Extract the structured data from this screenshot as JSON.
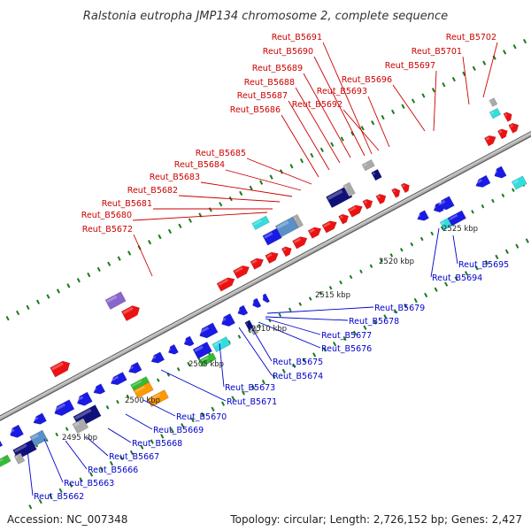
{
  "title": "Ralstonia eutropha JMP134 chromosome 2, complete sequence",
  "accession_label": "Accession: NC_007348",
  "topology_label": "Topology: circular; Length: 2,726,152 bp; Genes: 2,427",
  "colors": {
    "forward_label": "#cc0000",
    "reverse_label": "#0000cc",
    "backbone": "#8c8c8c",
    "tick": "#1a7a1a",
    "gene_red": "#ee1111",
    "gene_blue": "#1a1ae6",
    "gene_navy": "#10107a",
    "gene_steel": "#5b8fc7",
    "gene_cyan": "#33dddd",
    "gene_green": "#33bb33",
    "gene_orange": "#ff9900",
    "gene_purple": "#8866cc",
    "gene_gray": "#aaaaaa"
  },
  "kbp_labels": [
    "2495 kbp",
    "2500 kbp",
    "2505 kbp",
    "2510 kbp",
    "2515 kbp",
    "2520 kbp",
    "2525 kbp"
  ],
  "forward_genes": [
    "Reut_B5672",
    "Reut_B5680",
    "Reut_B5681",
    "Reut_B5682",
    "Reut_B5683",
    "Reut_B5684",
    "Reut_B5685",
    "Reut_B5686",
    "Reut_B5687",
    "Reut_B5688",
    "Reut_B5689",
    "Reut_B5690",
    "Reut_B5691",
    "Reut_B5692",
    "Reut_B5693",
    "Reut_B5696",
    "Reut_B5697",
    "Reut_B5701",
    "Reut_B5702"
  ],
  "reverse_genes": [
    "Reut_B5662",
    "Reut_B5663",
    "Reut_B5666",
    "Reut_B5667",
    "Reut_B5668",
    "Reut_B5669",
    "Reut_B5670",
    "Reut_B5671",
    "Reut_B5673",
    "Reut_B5674",
    "Reut_B5675",
    "Reut_B5676",
    "Reut_B5677",
    "Reut_B5678",
    "Reut_B5679",
    "Reut_B5694",
    "Reut_B5695"
  ]
}
